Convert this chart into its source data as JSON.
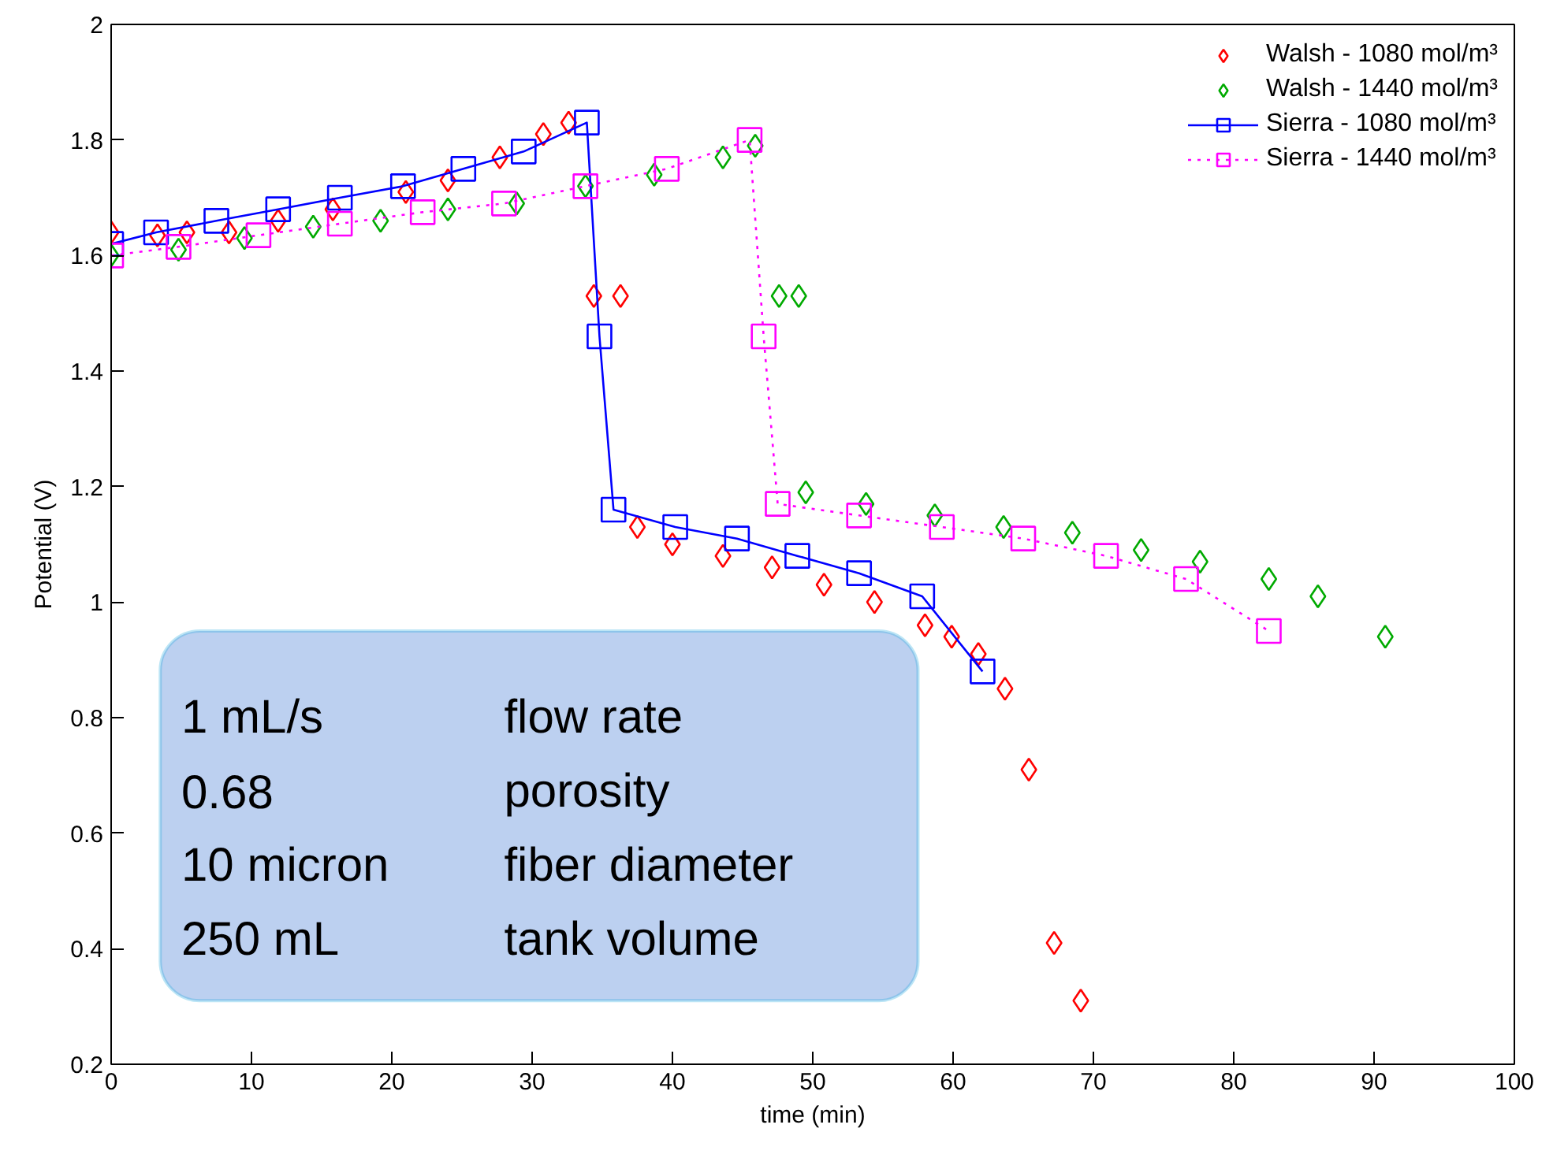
{
  "chart_data": {
    "type": "line",
    "xlabel": "time (min)",
    "ylabel": "Potential (V)",
    "xlim": [
      0,
      100
    ],
    "ylim": [
      0.2,
      2
    ],
    "xticks": [
      0,
      10,
      20,
      30,
      40,
      50,
      60,
      70,
      80,
      90,
      100
    ],
    "yticks": [
      0.2,
      0.4,
      0.6,
      0.8,
      1,
      1.2,
      1.4,
      1.6,
      1.8,
      2
    ],
    "grid": false,
    "legend": "top right",
    "annotations": [
      "1 mL/s",
      "flow rate",
      "0.68",
      "porosity",
      "10 micron",
      "fiber diameter",
      "250 mL",
      "tank volume"
    ],
    "series": [
      {
        "name": "Walsh - 1080 mol/m³",
        "type": "scatter",
        "marker": "diamond",
        "color": "#ff0000",
        "x": [
          0,
          3.3,
          5.4,
          8.4,
          11.9,
          15.8,
          21.0,
          24.0,
          27.7,
          30.8,
          32.6,
          34.4,
          36.3,
          37.5,
          40.0,
          43.6,
          47.1,
          50.8,
          54.4,
          58.0,
          59.9,
          61.8,
          63.7,
          65.4,
          67.2,
          69.1
        ],
        "values": [
          1.64,
          1.635,
          1.64,
          1.64,
          1.66,
          1.68,
          1.71,
          1.73,
          1.77,
          1.81,
          1.83,
          1.53,
          1.53,
          1.13,
          1.1,
          1.08,
          1.06,
          1.03,
          1.0,
          0.96,
          0.94,
          0.91,
          0.85,
          0.71,
          0.41,
          0.31
        ]
      },
      {
        "name": "Walsh - 1440 mol/m³",
        "type": "scatter",
        "marker": "diamond",
        "color": "#00aa00",
        "x": [
          0,
          4.8,
          9.5,
          14.4,
          19.2,
          24.0,
          28.9,
          33.8,
          38.7,
          43.6,
          45.9,
          47.6,
          49.0,
          49.5,
          53.8,
          58.7,
          63.6,
          68.5,
          73.4,
          77.6,
          82.5,
          86.0,
          90.8
        ],
        "values": [
          1.6,
          1.61,
          1.63,
          1.65,
          1.66,
          1.68,
          1.69,
          1.72,
          1.74,
          1.77,
          1.79,
          1.53,
          1.53,
          1.19,
          1.17,
          1.15,
          1.13,
          1.12,
          1.09,
          1.07,
          1.04,
          1.01,
          0.94
        ]
      },
      {
        "name": "Sierra - 1080 mol/m³",
        "marker": "square",
        "line_style": "solid",
        "color": "#0000ff",
        "x": [
          0,
          3.2,
          7.5,
          11.9,
          16.3,
          20.8,
          25.1,
          29.4,
          33.9,
          34.8,
          35.8,
          40.2,
          44.6,
          48.9,
          53.3,
          57.8,
          62.1
        ],
        "values": [
          1.62,
          1.64,
          1.66,
          1.68,
          1.7,
          1.72,
          1.75,
          1.78,
          1.83,
          1.46,
          1.16,
          1.13,
          1.11,
          1.08,
          1.05,
          1.01,
          0.88
        ]
      },
      {
        "name": "Sierra - 1440 mol/m³",
        "marker": "square",
        "line_style": "dotted",
        "color": "#ff00ff",
        "x": [
          0,
          4.8,
          10.5,
          16.3,
          22.2,
          28.0,
          33.8,
          39.6,
          45.5,
          46.5,
          47.5,
          53.3,
          59.2,
          65.0,
          70.9,
          76.6,
          82.5
        ],
        "values": [
          1.6,
          1.615,
          1.635,
          1.655,
          1.675,
          1.69,
          1.72,
          1.75,
          1.8,
          1.46,
          1.17,
          1.15,
          1.13,
          1.11,
          1.08,
          1.04,
          0.95
        ]
      }
    ]
  }
}
